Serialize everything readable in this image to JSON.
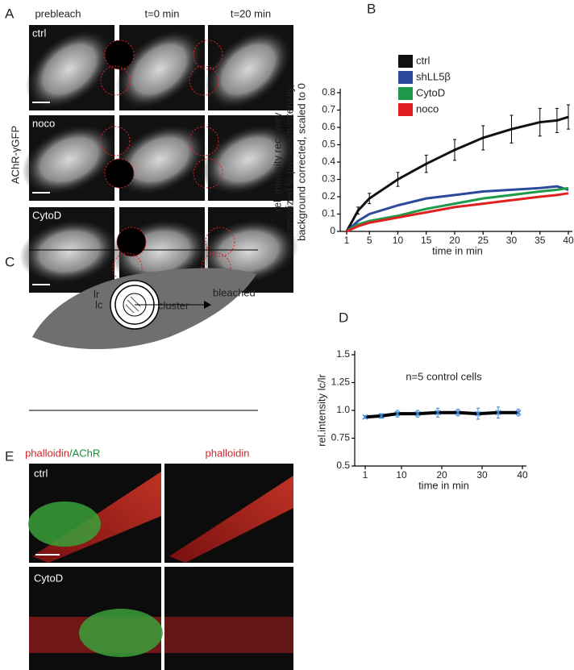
{
  "panels": {
    "a": {
      "letter": "A",
      "columns": [
        "prebleach",
        "t=0 min",
        "t=20 min"
      ],
      "rows": [
        "ctrl",
        "noco",
        "CytoD"
      ],
      "side_label": "AChR-γGFP"
    },
    "b": {
      "letter": "B"
    },
    "c": {
      "letter": "C",
      "labels": {
        "lr": "lr",
        "lc": "lc",
        "cluster": "cluster",
        "bleached": "bleached"
      }
    },
    "d": {
      "letter": "D"
    },
    "e": {
      "letter": "E",
      "columns": [
        [
          "phalloidin",
          "/AChR"
        ],
        "phalloidin"
      ],
      "rows": [
        "ctrl",
        "CytoD"
      ]
    }
  },
  "chart_data": [
    {
      "type": "line",
      "ylabel": [
        "rel. intensity recovery",
        "normalized to prebleach intensity,",
        "background corrected, scaled to 0"
      ],
      "xlabel": "time in min",
      "x": [
        1,
        3,
        5,
        10,
        15,
        20,
        25,
        30,
        35,
        38,
        40
      ],
      "series": [
        {
          "name": "ctrl",
          "color": "#111111",
          "values": [
            0,
            0.12,
            0.19,
            0.3,
            0.39,
            0.47,
            0.54,
            0.59,
            0.63,
            0.64,
            0.66
          ],
          "errors": [
            0,
            0.02,
            0.03,
            0.04,
            0.05,
            0.06,
            0.07,
            0.08,
            0.08,
            0.07,
            0.07
          ]
        },
        {
          "name": "shLL5β",
          "color": "#2b4a9c",
          "values": [
            0,
            0.06,
            0.1,
            0.15,
            0.19,
            0.21,
            0.23,
            0.24,
            0.25,
            0.26,
            0.24
          ]
        },
        {
          "name": "CytoD",
          "color": "#1f9a4a",
          "values": [
            0,
            0.04,
            0.06,
            0.09,
            0.13,
            0.16,
            0.19,
            0.21,
            0.23,
            0.24,
            0.25
          ]
        },
        {
          "name": "noco",
          "color": "#e02020",
          "values": [
            0,
            0.03,
            0.05,
            0.08,
            0.11,
            0.14,
            0.16,
            0.18,
            0.2,
            0.21,
            0.22
          ]
        }
      ],
      "xlim": [
        1,
        40
      ],
      "ylim": [
        0,
        0.8
      ],
      "xticks": [
        1,
        5,
        10,
        15,
        20,
        25,
        30,
        35,
        40
      ],
      "yticks": [
        0,
        0.1,
        0.2,
        0.3,
        0.4,
        0.5,
        0.6,
        0.7,
        0.8
      ],
      "legend": "upper-left"
    },
    {
      "type": "line",
      "title": "n=5 control cells",
      "ylabel": [
        "rel.intensity  lc/lr"
      ],
      "xlabel": "time in min",
      "x": [
        1,
        5,
        9,
        14,
        19,
        24,
        29,
        34,
        39
      ],
      "series": [
        {
          "color": "#000000",
          "marker_color": "#3a7fd0",
          "values": [
            0.94,
            0.95,
            0.97,
            0.97,
            0.98,
            0.98,
            0.97,
            0.98,
            0.98
          ],
          "errors": [
            0.01,
            0.02,
            0.03,
            0.03,
            0.04,
            0.03,
            0.05,
            0.05,
            0.03
          ]
        }
      ],
      "xlim": [
        1,
        40
      ],
      "ylim": [
        0.5,
        1.5
      ],
      "xticks": [
        1,
        10,
        20,
        30,
        40
      ],
      "yticks": [
        0.5,
        0.75,
        {
          "value": 1,
          "label": "1.0"
        },
        1.25,
        1.5
      ]
    }
  ]
}
